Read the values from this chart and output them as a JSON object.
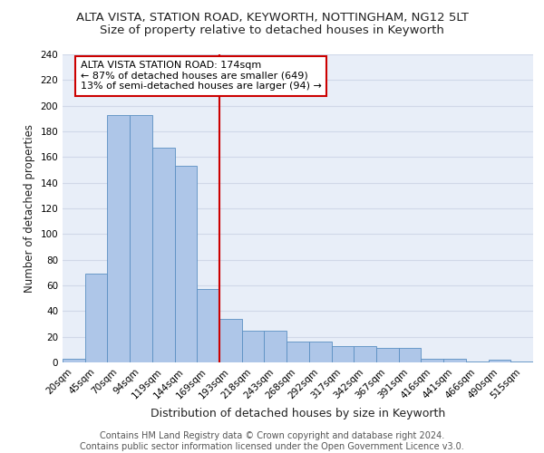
{
  "title": "ALTA VISTA, STATION ROAD, KEYWORTH, NOTTINGHAM, NG12 5LT",
  "subtitle": "Size of property relative to detached houses in Keyworth",
  "xlabel": "Distribution of detached houses by size in Keyworth",
  "ylabel": "Number of detached properties",
  "categories": [
    "20sqm",
    "45sqm",
    "70sqm",
    "94sqm",
    "119sqm",
    "144sqm",
    "169sqm",
    "193sqm",
    "218sqm",
    "243sqm",
    "268sqm",
    "292sqm",
    "317sqm",
    "342sqm",
    "367sqm",
    "391sqm",
    "416sqm",
    "441sqm",
    "466sqm",
    "490sqm",
    "515sqm"
  ],
  "values": [
    3,
    69,
    193,
    193,
    167,
    153,
    57,
    34,
    25,
    25,
    16,
    16,
    13,
    13,
    11,
    11,
    3,
    3,
    1,
    2,
    1
  ],
  "bar_color": "#aec6e8",
  "bar_edge_color": "#5a8fc2",
  "vline_x": 6.5,
  "vline_color": "#cc0000",
  "annotation_text": "ALTA VISTA STATION ROAD: 174sqm\n← 87% of detached houses are smaller (649)\n13% of semi-detached houses are larger (94) →",
  "annotation_box_color": "#cc0000",
  "ylim": [
    0,
    240
  ],
  "yticks": [
    0,
    20,
    40,
    60,
    80,
    100,
    120,
    140,
    160,
    180,
    200,
    220,
    240
  ],
  "grid_color": "#d0d8e8",
  "background_color": "#e8eef8",
  "footer_text": "Contains HM Land Registry data © Crown copyright and database right 2024.\nContains public sector information licensed under the Open Government Licence v3.0.",
  "title_fontsize": 9.5,
  "subtitle_fontsize": 9.5,
  "xlabel_fontsize": 9,
  "ylabel_fontsize": 8.5,
  "tick_fontsize": 7.5,
  "annotation_fontsize": 8,
  "footer_fontsize": 7
}
